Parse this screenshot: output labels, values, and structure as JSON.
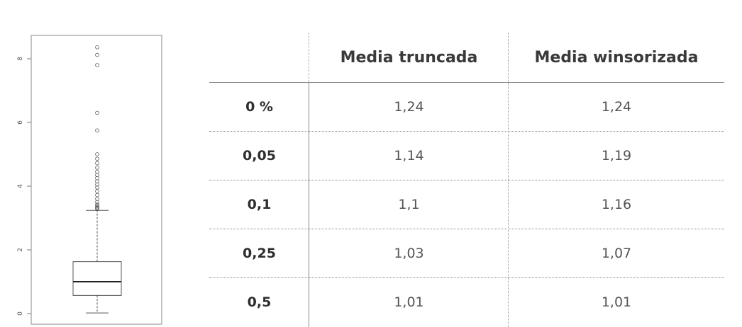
{
  "chart_data": [
    {
      "type": "box",
      "title": "",
      "xlabel": "",
      "ylabel": "",
      "ylim": [
        -0.3,
        8.6
      ],
      "yticks": [
        0,
        2,
        4,
        6,
        8
      ],
      "min": 0.02,
      "q1": 0.57,
      "median": 1.0,
      "q3": 1.63,
      "whisker_high": 3.24,
      "outliers": [
        3.28,
        3.31,
        3.34,
        3.38,
        3.42,
        3.5,
        3.6,
        3.72,
        3.84,
        3.96,
        4.05,
        4.15,
        4.25,
        4.35,
        4.45,
        4.58,
        4.72,
        4.86,
        5.0,
        5.75,
        6.3,
        7.8,
        8.12,
        8.36
      ]
    },
    {
      "type": "table",
      "columns": [
        "",
        "Media truncada",
        "Media winsorizada"
      ],
      "rows": [
        {
          "label": "0 %",
          "trunc": "1,24",
          "wins": "1,24"
        },
        {
          "label": "0,05",
          "trunc": "1,14",
          "wins": "1,19"
        },
        {
          "label": "0,1",
          "trunc": "1,1",
          "wins": "1,16"
        },
        {
          "label": "0,25",
          "trunc": "1,03",
          "wins": "1,07"
        },
        {
          "label": "0,5",
          "trunc": "1,01",
          "wins": "1,01"
        }
      ]
    }
  ]
}
